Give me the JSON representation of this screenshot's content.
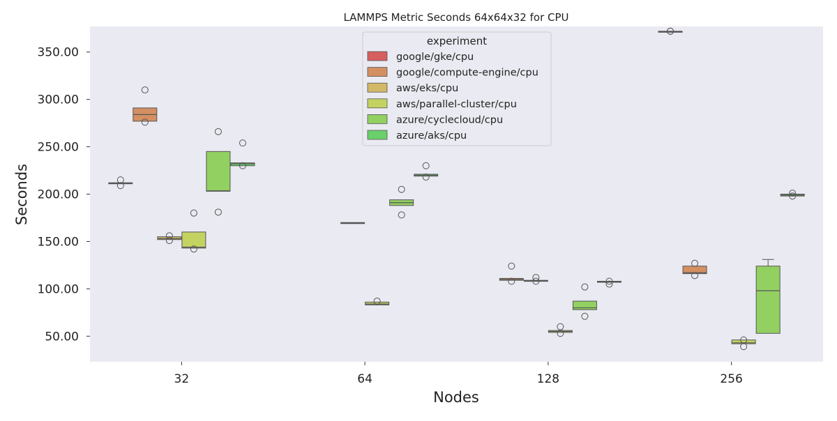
{
  "chart_data": {
    "type": "box",
    "title": "LAMMPS Metric Seconds 64x64x32 for CPU",
    "xlabel": "Nodes",
    "ylabel": "Seconds",
    "categories": [
      "32",
      "64",
      "128",
      "256"
    ],
    "yticks": [
      "50.00",
      "100.00",
      "150.00",
      "200.00",
      "250.00",
      "300.00",
      "350.00"
    ],
    "ylim": [
      23,
      377
    ],
    "grid": false,
    "legend": {
      "title": "experiment",
      "placement": "top-center"
    },
    "series": [
      {
        "name": "google/gke/cpu",
        "color": "#d65f5f",
        "boxes": [
          {
            "category": "32",
            "q1": 211,
            "median": 211.5,
            "q3": 212,
            "whisker_low": 211,
            "whisker_high": 212,
            "outliers": [
              215,
              209
            ]
          },
          {
            "category": "256",
            "q1": 371,
            "median": 371.5,
            "q3": 372,
            "whisker_low": 371,
            "whisker_high": 372,
            "outliers": [
              372,
              372
            ]
          }
        ]
      },
      {
        "name": "google/compute-engine/cpu",
        "color": "#d48f62",
        "boxes": [
          {
            "category": "32",
            "q1": 277,
            "median": 284,
            "q3": 291,
            "whisker_low": 277,
            "whisker_high": 291,
            "outliers": [
              310,
              276
            ]
          },
          {
            "category": "128",
            "q1": 109,
            "median": 110,
            "q3": 111,
            "whisker_low": 109,
            "whisker_high": 111,
            "outliers": [
              124,
              108
            ]
          },
          {
            "category": "256",
            "q1": 116,
            "median": 117,
            "q3": 124,
            "whisker_low": 116,
            "whisker_high": 124,
            "outliers": [
              127,
              114
            ]
          }
        ]
      },
      {
        "name": "aws/eks/cpu",
        "color": "#d3b868",
        "boxes": [
          {
            "category": "32",
            "q1": 152,
            "median": 153,
            "q3": 155,
            "whisker_low": 152,
            "whisker_high": 155,
            "outliers": [
              156,
              151
            ]
          },
          {
            "category": "64",
            "q1": 169,
            "median": 169.5,
            "q3": 170,
            "whisker_low": 169,
            "whisker_high": 170,
            "outliers": []
          },
          {
            "category": "128",
            "q1": 108,
            "median": 108.5,
            "q3": 109,
            "whisker_low": 108,
            "whisker_high": 109,
            "outliers": [
              112,
              108
            ]
          }
        ]
      },
      {
        "name": "aws/parallel-cluster/cpu",
        "color": "#c4d262",
        "boxes": [
          {
            "category": "32",
            "q1": 143,
            "median": 144,
            "q3": 160,
            "whisker_low": 143,
            "whisker_high": 160,
            "outliers": [
              180,
              142
            ]
          },
          {
            "category": "64",
            "q1": 83,
            "median": 84,
            "q3": 86,
            "whisker_low": 83,
            "whisker_high": 86,
            "outliers": [
              87
            ]
          },
          {
            "category": "128",
            "q1": 54,
            "median": 55,
            "q3": 56,
            "whisker_low": 54,
            "whisker_high": 56,
            "outliers": [
              60,
              53
            ]
          },
          {
            "category": "256",
            "q1": 42,
            "median": 43,
            "q3": 46,
            "whisker_low": 42,
            "whisker_high": 46,
            "outliers": [
              46,
              39
            ]
          }
        ]
      },
      {
        "name": "azure/cyclecloud/cpu",
        "color": "#92d062",
        "boxes": [
          {
            "category": "32",
            "q1": 203,
            "median": 203.5,
            "q3": 245,
            "whisker_low": 203,
            "whisker_high": 245,
            "outliers": [
              266,
              181
            ]
          },
          {
            "category": "64",
            "q1": 188,
            "median": 191,
            "q3": 194,
            "whisker_low": 188,
            "whisker_high": 194,
            "outliers": [
              205,
              178
            ]
          },
          {
            "category": "128",
            "q1": 78,
            "median": 80,
            "q3": 87,
            "whisker_low": 78,
            "whisker_high": 87,
            "outliers": [
              102,
              71
            ]
          },
          {
            "category": "256",
            "q1": 53,
            "median": 98,
            "q3": 124,
            "whisker_low": 53,
            "whisker_high": 131,
            "outliers": []
          }
        ]
      },
      {
        "name": "azure/aks/cpu",
        "color": "#6ad06b",
        "boxes": [
          {
            "category": "32",
            "q1": 230,
            "median": 232,
            "q3": 233,
            "whisker_low": 230,
            "whisker_high": 233,
            "outliers": [
              254,
              230
            ]
          },
          {
            "category": "64",
            "q1": 219,
            "median": 220,
            "q3": 221,
            "whisker_low": 219,
            "whisker_high": 221,
            "outliers": [
              230,
              218
            ]
          },
          {
            "category": "128",
            "q1": 107,
            "median": 107.5,
            "q3": 108,
            "whisker_low": 107,
            "whisker_high": 108,
            "outliers": [
              108,
              105
            ]
          },
          {
            "category": "256",
            "q1": 198,
            "median": 199,
            "q3": 200,
            "whisker_low": 198,
            "whisker_high": 200,
            "outliers": [
              201,
              198
            ]
          }
        ]
      }
    ],
    "colors": {
      "plot_background": "#eaeaf2",
      "box_edge": "#555555",
      "outlier_edge": "#555555"
    }
  }
}
